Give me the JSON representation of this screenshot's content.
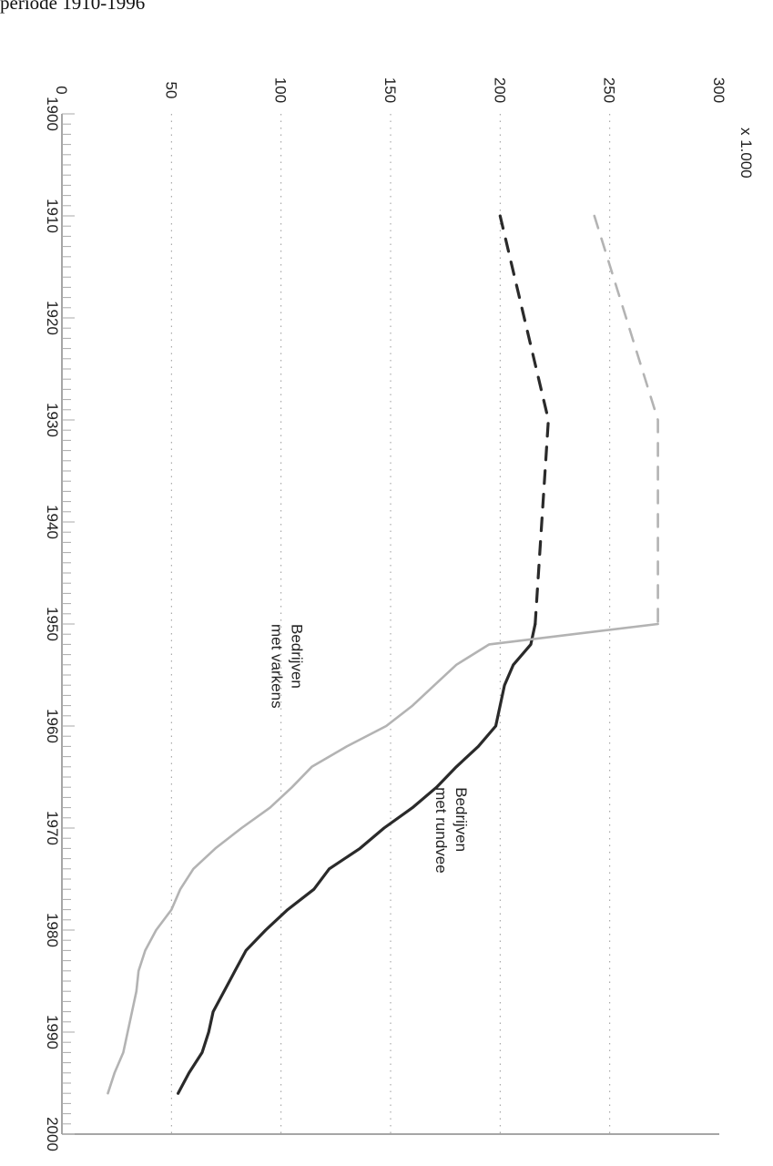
{
  "caption": "periode 1910-1996",
  "chart_data": {
    "type": "line",
    "orientation": "rotated-90-clockwise",
    "unit_label": "x 1.000",
    "xlim": [
      1900,
      2000
    ],
    "ylim": [
      0,
      300
    ],
    "x_ticks": [
      1900,
      1910,
      1920,
      1930,
      1940,
      1950,
      1960,
      1970,
      1980,
      1990,
      2000
    ],
    "x_tick_labels": [
      "1900",
      "1910",
      "1920",
      "1930",
      "1940",
      "1950",
      "1960",
      "1970",
      "1980",
      "1990",
      "2000"
    ],
    "y_ticks": [
      0,
      50,
      100,
      150,
      200,
      250,
      300
    ],
    "y_tick_labels": [
      "0",
      "50",
      "100",
      "150",
      "200",
      "250",
      "300"
    ],
    "grid": "dotted horizontal at 50, 100, 150, 200, 250",
    "series": [
      {
        "label_lines": [
          "Bedrijven",
          "met rundvee"
        ],
        "color": "#2a2a2a",
        "segments": [
          {
            "style": "dashed",
            "x": [
              1910,
              1930,
              1950
            ],
            "y": [
              200,
              222,
              216
            ]
          },
          {
            "style": "solid",
            "x": [
              1950,
              1952,
              1954,
              1956,
              1958,
              1960,
              1962,
              1964,
              1966,
              1968,
              1970,
              1972,
              1974,
              1976,
              1978,
              1980,
              1982,
              1984,
              1986,
              1988,
              1990,
              1992,
              1994,
              1996
            ],
            "y": [
              216,
              214,
              206,
              202,
              200,
              198,
              190,
              180,
              171,
              160,
              147,
              136,
              122,
              115,
              103,
              93,
              84,
              79,
              74,
              69,
              67,
              64,
              58,
              53
            ]
          }
        ]
      },
      {
        "label_lines": [
          "Bedrijven",
          "met varkens"
        ],
        "color": "#b3b3b3",
        "segments": [
          {
            "style": "dashed",
            "x": [
              1910,
              1930,
              1950
            ],
            "y": [
              243,
              272,
              272
            ]
          },
          {
            "style": "solid",
            "x": [
              1950,
              1952,
              1954,
              1956,
              1958,
              1960,
              1962,
              1964,
              1966,
              1968,
              1970,
              1972,
              1974,
              1976,
              1978,
              1980,
              1982,
              1984,
              1986,
              1988,
              1990,
              1992,
              1994,
              1996
            ],
            "y": [
              272,
              195,
              180,
              170,
              160,
              148,
              130,
              114,
              105,
              95,
              82,
              70,
              60,
              54,
              50,
              43,
              38,
              35,
              34,
              32,
              30,
              28,
              24,
              21
            ]
          }
        ]
      }
    ]
  }
}
